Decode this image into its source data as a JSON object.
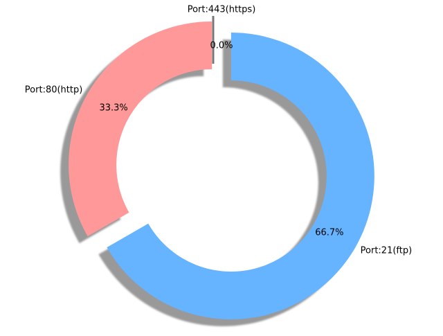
{
  "chart_data": {
    "type": "pie",
    "style": "donut",
    "categories": [
      "Port:443(https)",
      "Port:80(http)",
      "Port:21(ftp)"
    ],
    "values": [
      0.0,
      33.3,
      66.7
    ],
    "percent_labels": [
      "0.0%",
      "33.3%",
      "66.7%"
    ],
    "colors": [
      "#ffffff",
      "#ff9999",
      "#66b3ff"
    ],
    "exploded": true,
    "shadow": true,
    "start_angle_deg": 90,
    "title": ""
  }
}
